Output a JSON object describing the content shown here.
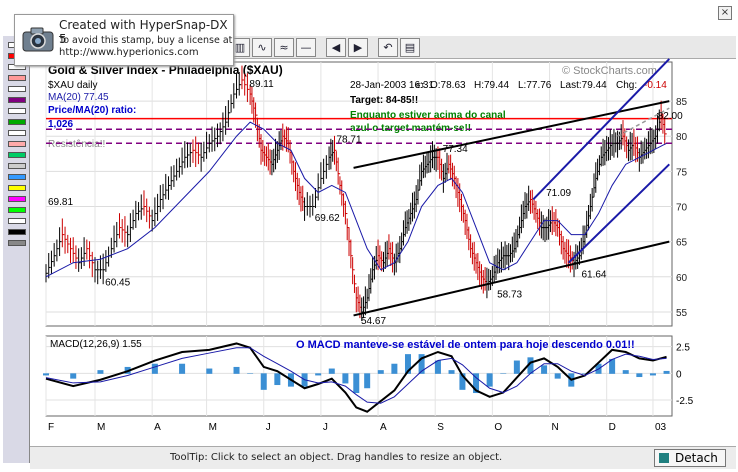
{
  "stamp": {
    "line1": "Created with HyperSnap-DX 5",
    "line2": "To avoid this stamp, buy a license at",
    "line3": "http://www.hyperionics.com"
  },
  "colors": {
    "price_up": "#000000",
    "price_down": "#cc0000",
    "ma": "#1a1aa8",
    "resistance": "#ff0000",
    "purple_dash": "#800080",
    "channel_black": "#000000",
    "channel_blue": "#1a1aa8",
    "annotation_green": "#008000",
    "annotation_blue": "#0000cc",
    "histogram": "#3b8fd4"
  },
  "palette_colors": [
    "#ffffff",
    "#ff0000",
    "#ffffff",
    "#ff9999",
    "#ffffff",
    "#800080",
    "#ffffff",
    "#00aa00",
    "#ffffff",
    "#ffaaaa",
    "#00cc66",
    "#cccccc",
    "#3399ff",
    "#ffff00",
    "#ff00ff",
    "#00ff00",
    "#ffffff",
    "#000000",
    "#888888"
  ],
  "toolbar_icons": [
    "bars-icon",
    "wave-icon",
    "wave-2-icon",
    "line-icon",
    "arrow-left-icon",
    "arrow-right-icon",
    "undo-icon",
    "layout-icon"
  ],
  "chart_data": [
    {
      "type": "line",
      "title": "Gold & Silver Index - Philadelphia ($XAU)",
      "watermark": "© StockCharts.com",
      "symbol_label": "$XAU daily",
      "ma_label": "MA(20) 77.45",
      "ratio_label": "Price/MA(20) ratio:",
      "ratio_value": "1,026",
      "quote": {
        "date": "28-Jan-2003 16:31",
        "tz": "ET",
        "open": "O:78.63",
        "high": "H:79.44",
        "low": "L:77.76",
        "last": "Last:79.44",
        "chg": "Chg:",
        "chg_value": "-0.14"
      },
      "target_label": "Target: 84-85!!",
      "note_green_1": "Enquanto estiver acima do canal",
      "note_green_2": "azul o target mantém-se!!",
      "resistance_label": "Resistência!!",
      "x_months": [
        "F",
        "M",
        "A",
        "M",
        "J",
        "J",
        "A",
        "S",
        "O",
        "N",
        "D",
        "03"
      ],
      "ylim": [
        53,
        88
      ],
      "y_ticks": [
        55,
        60,
        65,
        70,
        75,
        80,
        85
      ],
      "y_tick_labels": [
        "55",
        "60",
        "65",
        "70",
        "75",
        "80",
        "85"
      ],
      "price_labels": [
        {
          "label": "69.81",
          "x": 0,
          "y": 69.81
        },
        {
          "label": "60.45",
          "x": 42,
          "y": 60.45
        },
        {
          "label": "89.11",
          "x": 148,
          "y": 89.11
        },
        {
          "label": "78.71",
          "x": 212,
          "y": 78.71
        },
        {
          "label": "69.62",
          "x": 196,
          "y": 69.62
        },
        {
          "label": "54.67",
          "x": 230,
          "y": 54.67
        },
        {
          "label": "77.34",
          "x": 290,
          "y": 77.34
        },
        {
          "label": "58.73",
          "x": 330,
          "y": 58.73
        },
        {
          "label": "71.09",
          "x": 366,
          "y": 71.09
        },
        {
          "label": "61.64",
          "x": 392,
          "y": 61.64
        },
        {
          "label": "82.00",
          "x": 448,
          "y": 82.0
        }
      ],
      "resistance_levels": [
        82.5
      ],
      "dashed_levels": [
        81.0,
        79.0
      ],
      "close_series": [
        [
          0,
          60.5
        ],
        [
          6,
          63
        ],
        [
          12,
          66
        ],
        [
          18,
          64
        ],
        [
          24,
          62
        ],
        [
          30,
          64
        ],
        [
          36,
          61
        ],
        [
          42,
          61
        ],
        [
          48,
          64
        ],
        [
          54,
          67
        ],
        [
          60,
          66
        ],
        [
          66,
          69
        ],
        [
          72,
          70
        ],
        [
          78,
          68
        ],
        [
          84,
          71
        ],
        [
          90,
          73
        ],
        [
          96,
          75
        ],
        [
          102,
          77
        ],
        [
          108,
          78
        ],
        [
          114,
          77
        ],
        [
          120,
          79
        ],
        [
          126,
          80
        ],
        [
          132,
          82
        ],
        [
          138,
          86
        ],
        [
          144,
          88
        ],
        [
          150,
          86
        ],
        [
          154,
          83
        ],
        [
          158,
          78
        ],
        [
          162,
          77
        ],
        [
          166,
          76
        ],
        [
          170,
          78
        ],
        [
          174,
          80
        ],
        [
          178,
          79
        ],
        [
          182,
          75
        ],
        [
          186,
          72
        ],
        [
          190,
          70
        ],
        [
          196,
          70
        ],
        [
          202,
          74
        ],
        [
          208,
          77
        ],
        [
          212,
          78
        ],
        [
          216,
          73
        ],
        [
          220,
          69
        ],
        [
          224,
          63
        ],
        [
          228,
          57
        ],
        [
          232,
          55
        ],
        [
          236,
          57
        ],
        [
          240,
          61
        ],
        [
          244,
          63
        ],
        [
          248,
          62
        ],
        [
          252,
          64
        ],
        [
          256,
          62
        ],
        [
          260,
          64
        ],
        [
          264,
          67
        ],
        [
          268,
          69
        ],
        [
          272,
          71
        ],
        [
          276,
          75
        ],
        [
          280,
          76
        ],
        [
          284,
          77
        ],
        [
          288,
          77
        ],
        [
          292,
          74
        ],
        [
          296,
          76
        ],
        [
          300,
          74
        ],
        [
          304,
          71
        ],
        [
          308,
          68
        ],
        [
          312,
          64
        ],
        [
          316,
          62
        ],
        [
          320,
          60
        ],
        [
          324,
          59
        ],
        [
          328,
          60
        ],
        [
          332,
          62
        ],
        [
          336,
          63
        ],
        [
          340,
          63
        ],
        [
          344,
          64
        ],
        [
          348,
          67
        ],
        [
          352,
          70
        ],
        [
          356,
          71
        ],
        [
          360,
          69
        ],
        [
          364,
          67
        ],
        [
          368,
          67
        ],
        [
          372,
          68
        ],
        [
          376,
          67
        ],
        [
          380,
          64
        ],
        [
          384,
          63
        ],
        [
          388,
          62
        ],
        [
          392,
          63
        ],
        [
          396,
          66
        ],
        [
          400,
          70
        ],
        [
          404,
          74
        ],
        [
          408,
          77
        ],
        [
          412,
          78
        ],
        [
          416,
          79
        ],
        [
          420,
          79
        ],
        [
          424,
          80
        ],
        [
          428,
          78
        ],
        [
          432,
          79
        ],
        [
          436,
          77
        ],
        [
          440,
          78
        ],
        [
          444,
          79
        ],
        [
          448,
          80
        ],
        [
          452,
          83
        ],
        [
          456,
          79
        ]
      ],
      "ma_series": [
        [
          0,
          60
        ],
        [
          20,
          62
        ],
        [
          40,
          62.5
        ],
        [
          60,
          64
        ],
        [
          80,
          67
        ],
        [
          100,
          71
        ],
        [
          120,
          75
        ],
        [
          140,
          80
        ],
        [
          150,
          82
        ],
        [
          160,
          81
        ],
        [
          170,
          79
        ],
        [
          180,
          78
        ],
        [
          190,
          74
        ],
        [
          200,
          72
        ],
        [
          210,
          73
        ],
        [
          220,
          72
        ],
        [
          228,
          68
        ],
        [
          236,
          64
        ],
        [
          246,
          61
        ],
        [
          256,
          62
        ],
        [
          266,
          65
        ],
        [
          276,
          70
        ],
        [
          288,
          73
        ],
        [
          298,
          74
        ],
        [
          306,
          72
        ],
        [
          316,
          67
        ],
        [
          326,
          62
        ],
        [
          336,
          61
        ],
        [
          346,
          62
        ],
        [
          356,
          65
        ],
        [
          366,
          68
        ],
        [
          376,
          68
        ],
        [
          386,
          66
        ],
        [
          396,
          66
        ],
        [
          406,
          69
        ],
        [
          416,
          73
        ],
        [
          426,
          76
        ],
        [
          436,
          77
        ],
        [
          446,
          78
        ],
        [
          456,
          79
        ]
      ],
      "trendlines_black": [
        {
          "x1": 226,
          "y1": 75.5,
          "x2": 458,
          "y2": 85
        },
        {
          "x1": 226,
          "y1": 54.5,
          "x2": 458,
          "y2": 65
        }
      ],
      "trendlines_blue": [
        {
          "x1": 358,
          "y1": 71,
          "x2": 458,
          "y2": 91
        },
        {
          "x1": 384,
          "y1": 62,
          "x2": 458,
          "y2": 76
        }
      ],
      "x_max": 460
    },
    {
      "type": "line",
      "title": "MACD(12,26,9) 1.55",
      "note": "O MACD manteve-se estável de ontem para hoje descendo 0.01!!",
      "ylim": [
        -4,
        3.5
      ],
      "y_ticks": [
        2.5,
        0,
        -2.5
      ],
      "y_tick_labels": [
        "2.5",
        "0",
        "-2.5"
      ],
      "macd_series": [
        [
          0,
          -0.5
        ],
        [
          20,
          -1.2
        ],
        [
          40,
          -0.6
        ],
        [
          60,
          0.2
        ],
        [
          80,
          1.2
        ],
        [
          100,
          2.0
        ],
        [
          120,
          2.2
        ],
        [
          140,
          2.8
        ],
        [
          150,
          2.4
        ],
        [
          160,
          0.6
        ],
        [
          170,
          0.2
        ],
        [
          180,
          -0.6
        ],
        [
          190,
          -1.4
        ],
        [
          200,
          -1.0
        ],
        [
          210,
          -0.5
        ],
        [
          220,
          -1.8
        ],
        [
          228,
          -3.2
        ],
        [
          236,
          -3.6
        ],
        [
          246,
          -2.6
        ],
        [
          256,
          -1.6
        ],
        [
          266,
          0.2
        ],
        [
          276,
          1.4
        ],
        [
          288,
          2.0
        ],
        [
          298,
          1.6
        ],
        [
          306,
          -0.2
        ],
        [
          316,
          -1.6
        ],
        [
          326,
          -2.2
        ],
        [
          336,
          -1.8
        ],
        [
          346,
          -0.4
        ],
        [
          356,
          1.0
        ],
        [
          366,
          1.4
        ],
        [
          376,
          0.6
        ],
        [
          386,
          -0.6
        ],
        [
          396,
          -0.2
        ],
        [
          406,
          1.0
        ],
        [
          416,
          2.2
        ],
        [
          426,
          2.0
        ],
        [
          436,
          1.4
        ],
        [
          446,
          1.2
        ],
        [
          456,
          1.55
        ]
      ],
      "signal_series": [
        [
          0,
          -0.4
        ],
        [
          20,
          -0.9
        ],
        [
          40,
          -0.8
        ],
        [
          60,
          -0.2
        ],
        [
          80,
          0.6
        ],
        [
          100,
          1.4
        ],
        [
          120,
          1.9
        ],
        [
          140,
          2.4
        ],
        [
          150,
          2.4
        ],
        [
          160,
          1.6
        ],
        [
          170,
          0.9
        ],
        [
          180,
          0.2
        ],
        [
          190,
          -0.6
        ],
        [
          200,
          -0.9
        ],
        [
          210,
          -0.8
        ],
        [
          220,
          -1.2
        ],
        [
          228,
          -2.0
        ],
        [
          236,
          -2.7
        ],
        [
          246,
          -2.8
        ],
        [
          256,
          -2.2
        ],
        [
          266,
          -1.0
        ],
        [
          276,
          0.2
        ],
        [
          288,
          1.2
        ],
        [
          298,
          1.4
        ],
        [
          306,
          0.8
        ],
        [
          316,
          -0.4
        ],
        [
          326,
          -1.4
        ],
        [
          336,
          -1.8
        ],
        [
          346,
          -1.2
        ],
        [
          356,
          0.0
        ],
        [
          366,
          0.9
        ],
        [
          376,
          0.9
        ],
        [
          386,
          0.2
        ],
        [
          396,
          -0.2
        ],
        [
          406,
          0.4
        ],
        [
          416,
          1.3
        ],
        [
          426,
          1.8
        ],
        [
          436,
          1.6
        ],
        [
          446,
          1.3
        ],
        [
          456,
          1.4
        ]
      ]
    }
  ],
  "status": {
    "tooltip": "ToolTip: Click to select an object. Drag handles to resize an object.",
    "detach": "Detach"
  }
}
